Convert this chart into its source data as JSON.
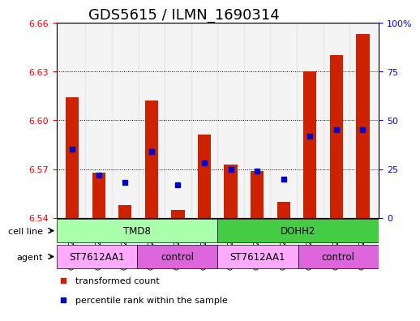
{
  "title": "GDS5615 / ILMN_1690314",
  "samples": [
    "GSM1527307",
    "GSM1527308",
    "GSM1527309",
    "GSM1527304",
    "GSM1527305",
    "GSM1527306",
    "GSM1527313",
    "GSM1527314",
    "GSM1527315",
    "GSM1527310",
    "GSM1527311",
    "GSM1527312"
  ],
  "transformed_count": [
    6.614,
    6.568,
    6.548,
    6.612,
    6.545,
    6.591,
    6.573,
    6.569,
    6.55,
    6.63,
    6.64,
    6.653
  ],
  "percentile_rank": [
    35,
    22,
    18,
    34,
    17,
    28,
    25,
    24,
    20,
    42,
    45,
    45
  ],
  "y_min": 6.54,
  "y_max": 6.66,
  "y_ticks": [
    6.54,
    6.57,
    6.6,
    6.63,
    6.66
  ],
  "right_y_ticks": [
    0,
    25,
    50,
    75,
    100
  ],
  "right_y_labels": [
    "0",
    "25",
    "50",
    "75",
    "100%"
  ],
  "bar_color": "#cc2200",
  "dot_color": "#0000cc",
  "cell_line_groups": [
    {
      "label": "TMD8",
      "start": 0,
      "end": 6,
      "color": "#aaffaa"
    },
    {
      "label": "DOHH2",
      "start": 6,
      "end": 12,
      "color": "#44cc44"
    }
  ],
  "agent_groups": [
    {
      "label": "ST7612AA1",
      "start": 0,
      "end": 3,
      "color": "#ffaaff"
    },
    {
      "label": "control",
      "start": 3,
      "end": 6,
      "color": "#dd66dd"
    },
    {
      "label": "ST7612AA1",
      "start": 6,
      "end": 9,
      "color": "#ffaaff"
    },
    {
      "label": "control",
      "start": 9,
      "end": 12,
      "color": "#dd66dd"
    }
  ],
  "legend_items": [
    {
      "label": "transformed count",
      "color": "#cc2200",
      "marker": "s"
    },
    {
      "label": "percentile rank within the sample",
      "color": "#0000cc",
      "marker": "s"
    }
  ],
  "xlabel_color": "#888888",
  "title_fontsize": 13,
  "tick_fontsize": 9,
  "label_fontsize": 9,
  "bar_width": 0.5
}
